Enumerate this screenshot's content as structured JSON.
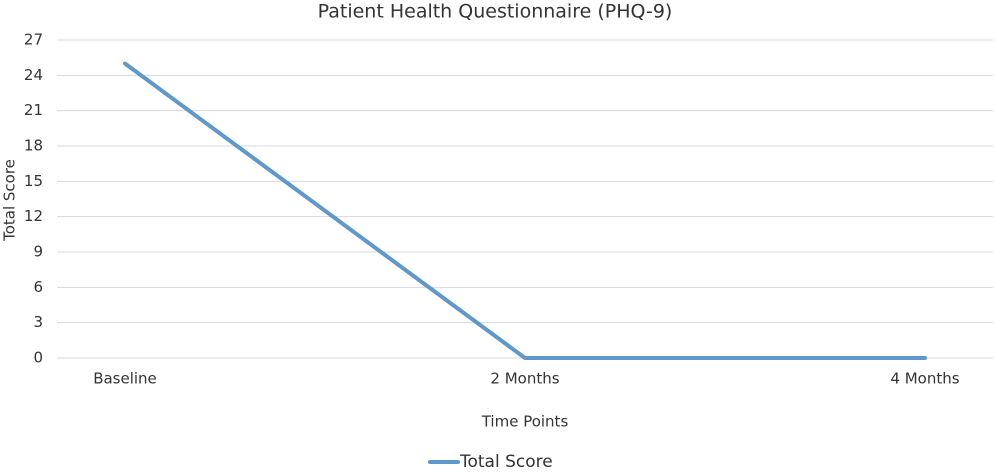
{
  "chart_data": {
    "type": "line",
    "title": "Patient Health Questionnaire (PHQ-9)",
    "x_label": "Time Points",
    "y_label": "Total Score",
    "categories": [
      "Baseline",
      "2 Months",
      "4 Months"
    ],
    "series": [
      {
        "name": "Total Score",
        "color": "#5f98cc",
        "values": [
          25,
          0,
          0
        ]
      }
    ],
    "ylim": [
      0,
      27
    ],
    "yticks": [
      0,
      3,
      6,
      9,
      12,
      15,
      18,
      21,
      24,
      27
    ],
    "grid": true,
    "legend": "bottom"
  }
}
